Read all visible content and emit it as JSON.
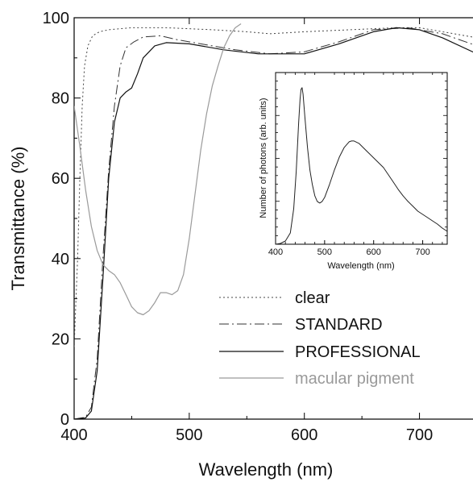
{
  "chart_data": [
    {
      "type": "line",
      "xlabel": "Wavelength (nm)",
      "ylabel": "Transmittance (%)",
      "xlim": [
        400,
        750
      ],
      "ylim": [
        0,
        100
      ],
      "xticks": [
        400,
        500,
        600,
        700
      ],
      "yticks": [
        0,
        20,
        40,
        60,
        80,
        100
      ],
      "x_tick_labels": [
        "400",
        "500",
        "600",
        "700"
      ],
      "y_tick_labels": [
        "0",
        "20",
        "40",
        "60",
        "80",
        "100"
      ],
      "grid": false,
      "legend_position": "lower-right",
      "series": [
        {
          "name": "clear",
          "color": "#444444",
          "dash": "2,3",
          "width": 1,
          "points": [
            [
              400,
              18
            ],
            [
              403,
              40
            ],
            [
              405,
              60
            ],
            [
              407,
              78
            ],
            [
              409,
              88
            ],
            [
              412,
              93
            ],
            [
              416,
              95.5
            ],
            [
              422,
              96.5
            ],
            [
              430,
              97
            ],
            [
              450,
              97.5
            ],
            [
              480,
              97.5
            ],
            [
              520,
              97
            ],
            [
              550,
              96.5
            ],
            [
              570,
              96
            ],
            [
              600,
              96.5
            ],
            [
              640,
              97
            ],
            [
              680,
              97.5
            ],
            [
              700,
              97.5
            ],
            [
              720,
              96.5
            ],
            [
              750,
              95
            ]
          ]
        },
        {
          "name": "STANDARD",
          "color": "#333333",
          "dash": "12,4,2,4",
          "width": 1,
          "points": [
            [
              400,
              0
            ],
            [
              410,
              0.5
            ],
            [
              415,
              3
            ],
            [
              420,
              15
            ],
            [
              425,
              40
            ],
            [
              430,
              62
            ],
            [
              435,
              78
            ],
            [
              440,
              88
            ],
            [
              445,
              92.5
            ],
            [
              452,
              94
            ],
            [
              460,
              95.2
            ],
            [
              475,
              95.5
            ],
            [
              490,
              94.5
            ],
            [
              510,
              93.5
            ],
            [
              540,
              92
            ],
            [
              570,
              91
            ],
            [
              600,
              91.5
            ],
            [
              630,
              94
            ],
            [
              660,
              97
            ],
            [
              690,
              97.5
            ],
            [
              720,
              96
            ],
            [
              750,
              93
            ]
          ]
        },
        {
          "name": "PROFESSIONAL",
          "color": "#111111",
          "dash": "",
          "width": 1.2,
          "points": [
            [
              400,
              0
            ],
            [
              410,
              0.3
            ],
            [
              415,
              2
            ],
            [
              420,
              12
            ],
            [
              425,
              35
            ],
            [
              430,
              60
            ],
            [
              435,
              74
            ],
            [
              440,
              80
            ],
            [
              445,
              81.5
            ],
            [
              450,
              82.5
            ],
            [
              455,
              86
            ],
            [
              460,
              90
            ],
            [
              470,
              93
            ],
            [
              480,
              93.8
            ],
            [
              500,
              93.5
            ],
            [
              530,
              92
            ],
            [
              560,
              91
            ],
            [
              600,
              91
            ],
            [
              630,
              93.5
            ],
            [
              660,
              96.5
            ],
            [
              680,
              97.5
            ],
            [
              700,
              97
            ],
            [
              720,
              95
            ],
            [
              750,
              91
            ]
          ]
        },
        {
          "name": "macular pigment",
          "color": "#9a9a9a",
          "dash": "",
          "width": 1.2,
          "points": [
            [
              400,
              78
            ],
            [
              405,
              68
            ],
            [
              410,
              57
            ],
            [
              415,
              48
            ],
            [
              420,
              42
            ],
            [
              425,
              38.5
            ],
            [
              430,
              37
            ],
            [
              435,
              36
            ],
            [
              440,
              34
            ],
            [
              445,
              31
            ],
            [
              450,
              28
            ],
            [
              455,
              26.5
            ],
            [
              460,
              26
            ],
            [
              465,
              27
            ],
            [
              470,
              29
            ],
            [
              475,
              31.5
            ],
            [
              480,
              31.5
            ],
            [
              485,
              31
            ],
            [
              490,
              32
            ],
            [
              495,
              36
            ],
            [
              500,
              45
            ],
            [
              505,
              56
            ],
            [
              510,
              67
            ],
            [
              515,
              76
            ],
            [
              520,
              83
            ],
            [
              525,
              88
            ],
            [
              530,
              92.5
            ],
            [
              535,
              95.5
            ],
            [
              540,
              97.5
            ],
            [
              545,
              98.5
            ]
          ]
        }
      ]
    },
    {
      "type": "line",
      "xlabel": "Wavelength (nm)",
      "ylabel": "Number of photons (arb. units)",
      "xlim": [
        400,
        750
      ],
      "ylim": [
        0,
        1
      ],
      "xticks": [
        400,
        500,
        600,
        700
      ],
      "x_tick_labels": [
        "400",
        "500",
        "600",
        "700"
      ],
      "series": [
        {
          "color": "#222222",
          "points": [
            [
              400,
              0
            ],
            [
              410,
              0.005
            ],
            [
              420,
              0.02
            ],
            [
              430,
              0.07
            ],
            [
              437,
              0.22
            ],
            [
              442,
              0.45
            ],
            [
              447,
              0.75
            ],
            [
              450,
              0.9
            ],
            [
              452,
              0.96
            ],
            [
              454,
              0.97
            ],
            [
              456,
              0.93
            ],
            [
              460,
              0.78
            ],
            [
              465,
              0.6
            ],
            [
              470,
              0.46
            ],
            [
              475,
              0.37
            ],
            [
              480,
              0.3
            ],
            [
              485,
              0.265
            ],
            [
              490,
              0.255
            ],
            [
              495,
              0.265
            ],
            [
              500,
              0.29
            ],
            [
              510,
              0.37
            ],
            [
              520,
              0.46
            ],
            [
              530,
              0.54
            ],
            [
              540,
              0.6
            ],
            [
              550,
              0.635
            ],
            [
              555,
              0.64
            ],
            [
              560,
              0.64
            ],
            [
              570,
              0.625
            ],
            [
              580,
              0.595
            ],
            [
              590,
              0.565
            ],
            [
              600,
              0.535
            ],
            [
              610,
              0.505
            ],
            [
              620,
              0.475
            ],
            [
              630,
              0.43
            ],
            [
              640,
              0.385
            ],
            [
              650,
              0.34
            ],
            [
              660,
              0.3
            ],
            [
              670,
              0.265
            ],
            [
              680,
              0.235
            ],
            [
              690,
              0.205
            ],
            [
              700,
              0.185
            ],
            [
              710,
              0.165
            ],
            [
              720,
              0.145
            ],
            [
              730,
              0.125
            ],
            [
              740,
              0.1
            ],
            [
              750,
              0.08
            ]
          ]
        }
      ]
    }
  ]
}
